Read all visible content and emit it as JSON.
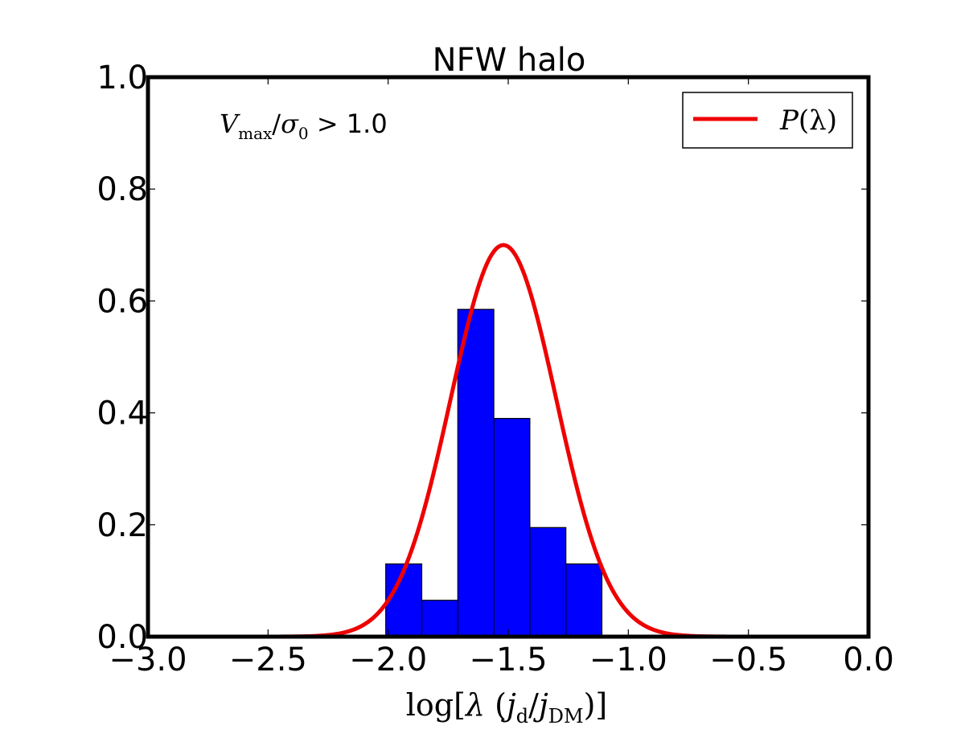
{
  "chart_data": {
    "type": "bar",
    "title": "NFW halo",
    "xlabel": {
      "prefix": "log[",
      "lambda": "λ",
      "open_paren": " (",
      "j": "j",
      "sub_d": "d",
      "slash": "/",
      "sub_dm": "DM",
      "close": ")]"
    },
    "ylabel": "",
    "xlim": [
      -3.0,
      0.0
    ],
    "ylim": [
      0.0,
      1.0
    ],
    "grid": false,
    "x_ticks": [
      -3.0,
      -2.5,
      -2.0,
      -1.5,
      -1.0,
      -0.5,
      0.0
    ],
    "x_tick_labels": [
      "−3.0",
      "−2.5",
      "−2.0",
      "−1.5",
      "−1.0",
      "−0.5",
      "0.0"
    ],
    "y_ticks": [
      0.0,
      0.2,
      0.4,
      0.6,
      0.8,
      1.0
    ],
    "y_tick_labels": [
      "0.0",
      "0.2",
      "0.4",
      "0.6",
      "0.8",
      "1.0"
    ],
    "bars": [
      {
        "x0": -2.01,
        "x1": -1.86,
        "value": 0.13
      },
      {
        "x0": -1.86,
        "x1": -1.71,
        "value": 0.065
      },
      {
        "x0": -1.71,
        "x1": -1.56,
        "value": 0.585
      },
      {
        "x0": -1.56,
        "x1": -1.41,
        "value": 0.39
      },
      {
        "x0": -1.41,
        "x1": -1.26,
        "value": 0.195
      },
      {
        "x0": -1.26,
        "x1": -1.11,
        "value": 0.13
      }
    ],
    "curve": {
      "name": "P(λ)",
      "model": "gaussian",
      "mu": -1.52,
      "sigma": 0.22,
      "peak": 0.7,
      "x_range": [
        -2.5,
        -0.5
      ]
    },
    "annotation": {
      "v": "V",
      "sub_max": "max",
      "slash": "/",
      "sigma": "σ",
      "sub_0": "0",
      "gt": " > ",
      "value": "1.0"
    },
    "legend": {
      "label_p": "P",
      "label_arg": "(λ)",
      "placement": "top-right"
    },
    "colors": {
      "bar_fill": "#0000ff",
      "bar_edge": "#000000",
      "curve": "#ee0000",
      "axes": "#000000"
    }
  }
}
